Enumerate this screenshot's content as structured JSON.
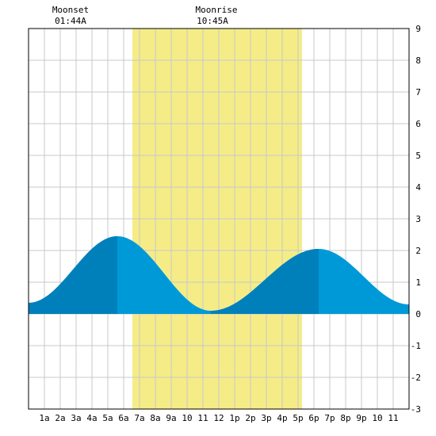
{
  "moon": {
    "moonset_label": "Moonset",
    "moonset_time": "01:44A",
    "moonrise_label": "Moonrise",
    "moonrise_time": "10:45A"
  },
  "colors": {
    "daylight": "#f5ec88",
    "tide_dark": "#0080bb",
    "tide_light": "#0099d8",
    "grid": "#c8c8c8",
    "border": "#000000",
    "background": "#ffffff"
  },
  "chart_data": {
    "type": "area",
    "title": "",
    "xlabel": "",
    "ylabel": "",
    "xlim": [
      0,
      24
    ],
    "ylim": [
      -3,
      9
    ],
    "grid": true,
    "x_tick_labels": [
      "1a",
      "2a",
      "3a",
      "4a",
      "5a",
      "6a",
      "7a",
      "8a",
      "9a",
      "10",
      "11",
      "12",
      "1p",
      "2p",
      "3p",
      "4p",
      "5p",
      "6p",
      "7p",
      "8p",
      "9p",
      "10",
      "11"
    ],
    "y_ticks": [
      -3,
      -2,
      -1,
      0,
      1,
      2,
      3,
      4,
      5,
      6,
      7,
      8,
      9
    ],
    "daylight_hours": [
      6.55,
      17.25
    ],
    "extrema": [
      {
        "x": 0,
        "y": 0.35
      },
      {
        "x": 5.6,
        "y": 2.45
      },
      {
        "x": 11.5,
        "y": 0.1
      },
      {
        "x": 18.3,
        "y": 2.05
      },
      {
        "x": 24,
        "y": 0.3
      }
    ],
    "dark_bands": [
      [
        0,
        5.6
      ],
      [
        11.5,
        18.3
      ]
    ]
  }
}
